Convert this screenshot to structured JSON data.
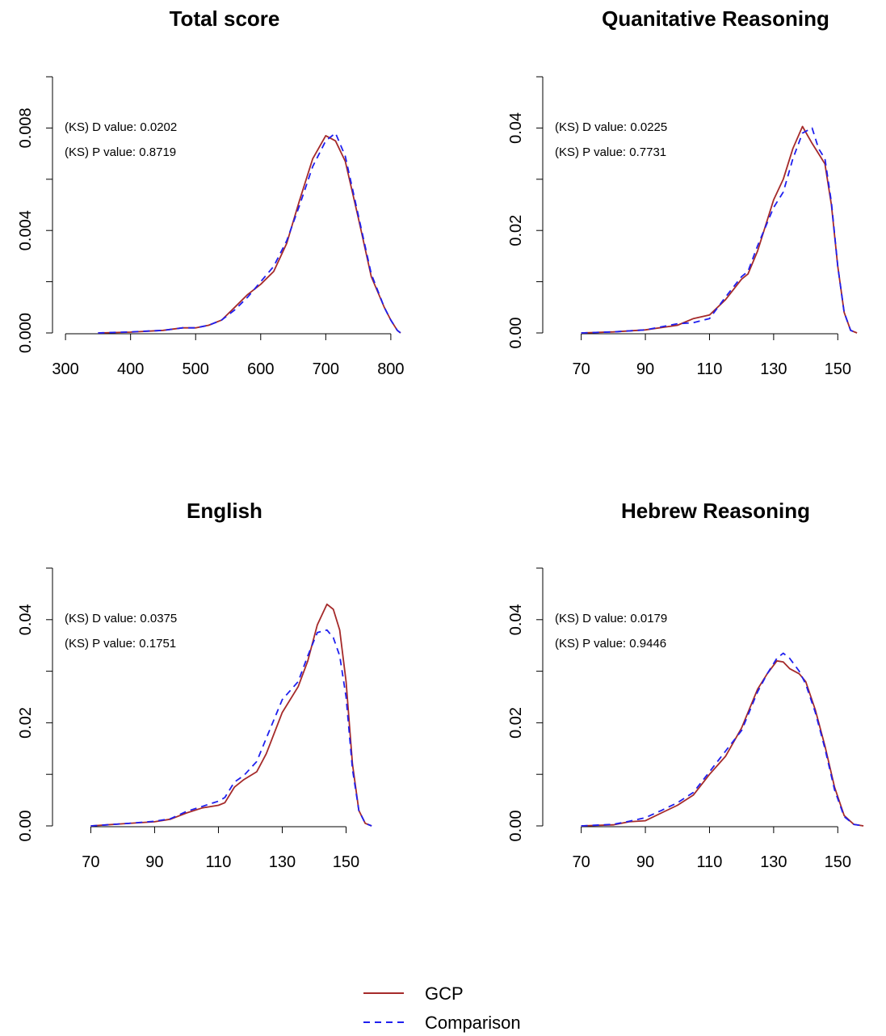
{
  "chart_data": [
    {
      "type": "line",
      "title": "Total score",
      "xlabel": "",
      "ylabel": "",
      "xlim": [
        280,
        820
      ],
      "ylim": [
        0,
        0.01
      ],
      "xticks": [
        300,
        400,
        500,
        600,
        700,
        800
      ],
      "xtick_labels": [
        "300",
        "400",
        "500",
        "600",
        "700",
        "800"
      ],
      "yticks": [
        0,
        0.002,
        0.004,
        0.006,
        0.008,
        0.01
      ],
      "ytick_labels": [
        "0.000",
        "",
        "0.004",
        "",
        "0.008",
        ""
      ],
      "annotations": [
        "(KS) D value: 0.0202",
        "(KS) P value: 0.8719"
      ],
      "series": [
        {
          "name": "GCP",
          "color": "#a52a2a",
          "dash": "solid",
          "x": [
            350,
            400,
            450,
            480,
            500,
            520,
            540,
            560,
            580,
            600,
            620,
            640,
            660,
            680,
            700,
            715,
            730,
            750,
            770,
            790,
            800,
            810,
            815
          ],
          "y": [
            0,
            3e-05,
            0.0001,
            0.0002,
            0.0002,
            0.0003,
            0.0005,
            0.001,
            0.0015,
            0.0019,
            0.0024,
            0.0035,
            0.0052,
            0.0068,
            0.0077,
            0.0075,
            0.0067,
            0.0045,
            0.0022,
            0.001,
            0.0005,
            0.0001,
            0
          ]
        },
        {
          "name": "Comparison",
          "color": "#1f1fef",
          "dash": "dashed",
          "x": [
            350,
            400,
            450,
            480,
            500,
            520,
            540,
            560,
            580,
            600,
            620,
            640,
            660,
            680,
            700,
            715,
            730,
            750,
            770,
            790,
            800,
            810,
            815
          ],
          "y": [
            0,
            4e-05,
            0.0001,
            0.0002,
            0.0002,
            0.0003,
            0.0005,
            0.0009,
            0.0014,
            0.002,
            0.0026,
            0.0036,
            0.005,
            0.0065,
            0.0075,
            0.0078,
            0.0069,
            0.0046,
            0.0023,
            0.001,
            0.0005,
            0.0001,
            0
          ]
        }
      ]
    },
    {
      "type": "line",
      "title": "Quanitative Reasoning",
      "xlabel": "",
      "ylabel": "",
      "xlim": [
        58,
        160
      ],
      "ylim": [
        0,
        0.05
      ],
      "xticks": [
        70,
        90,
        110,
        130,
        150
      ],
      "xtick_labels": [
        "70",
        "90",
        "110",
        "130",
        "150"
      ],
      "yticks": [
        0,
        0.01,
        0.02,
        0.03,
        0.04,
        0.05
      ],
      "ytick_labels": [
        "0.00",
        "",
        "0.02",
        "",
        "0.04",
        ""
      ],
      "annotations": [
        "(KS) D value: 0.0225",
        "(KS) P value: 0.7731"
      ],
      "series": [
        {
          "name": "GCP",
          "color": "#a52a2a",
          "dash": "solid",
          "x": [
            70,
            80,
            90,
            100,
            105,
            110,
            115,
            120,
            122,
            125,
            130,
            133,
            136,
            139,
            142,
            144,
            146,
            148,
            150,
            152,
            154,
            156
          ],
          "y": [
            0,
            0.0002,
            0.0006,
            0.0015,
            0.0028,
            0.0035,
            0.0065,
            0.0105,
            0.0115,
            0.016,
            0.026,
            0.03,
            0.036,
            0.0403,
            0.037,
            0.035,
            0.033,
            0.025,
            0.013,
            0.004,
            0.0005,
            0
          ]
        },
        {
          "name": "Comparison",
          "color": "#1f1fef",
          "dash": "dashed",
          "x": [
            70,
            80,
            90,
            100,
            105,
            110,
            115,
            120,
            122,
            125,
            130,
            133,
            136,
            139,
            142,
            144,
            146,
            148,
            150,
            152,
            154,
            156
          ],
          "y": [
            0,
            0.0002,
            0.0006,
            0.0018,
            0.002,
            0.0028,
            0.007,
            0.011,
            0.012,
            0.017,
            0.0245,
            0.0275,
            0.034,
            0.039,
            0.04,
            0.036,
            0.034,
            0.0255,
            0.013,
            0.004,
            0.0005,
            0
          ]
        }
      ]
    },
    {
      "type": "line",
      "title": "English",
      "xlabel": "",
      "ylabel": "",
      "xlim": [
        58,
        160
      ],
      "ylim": [
        0,
        0.05
      ],
      "xticks": [
        70,
        90,
        110,
        130,
        150
      ],
      "xtick_labels": [
        "70",
        "90",
        "110",
        "130",
        "150"
      ],
      "yticks": [
        0,
        0.01,
        0.02,
        0.03,
        0.04,
        0.05
      ],
      "ytick_labels": [
        "0.00",
        "",
        "0.02",
        "",
        "0.04",
        ""
      ],
      "annotations": [
        "(KS) D value: 0.0375",
        "(KS) P value: 0.1751"
      ],
      "series": [
        {
          "name": "GCP",
          "color": "#a52a2a",
          "dash": "solid",
          "x": [
            70,
            80,
            90,
            95,
            100,
            105,
            110,
            112,
            115,
            118,
            122,
            125,
            130,
            135,
            138,
            141,
            144,
            146,
            148,
            150,
            152,
            154,
            156,
            158
          ],
          "y": [
            0,
            0.0004,
            0.0008,
            0.0013,
            0.0025,
            0.0035,
            0.004,
            0.0045,
            0.0075,
            0.009,
            0.0105,
            0.014,
            0.022,
            0.027,
            0.032,
            0.039,
            0.043,
            0.042,
            0.038,
            0.028,
            0.012,
            0.003,
            0.0005,
            0
          ]
        },
        {
          "name": "Comparison",
          "color": "#1f1fef",
          "dash": "dashed",
          "x": [
            70,
            80,
            90,
            95,
            100,
            105,
            110,
            112,
            115,
            118,
            122,
            125,
            130,
            135,
            138,
            141,
            144,
            146,
            148,
            150,
            152,
            154,
            156,
            158
          ],
          "y": [
            0,
            0.0004,
            0.0009,
            0.0014,
            0.0028,
            0.0038,
            0.0048,
            0.0055,
            0.0085,
            0.0098,
            0.0125,
            0.017,
            0.0245,
            0.028,
            0.033,
            0.0375,
            0.038,
            0.0365,
            0.033,
            0.025,
            0.011,
            0.003,
            0.0005,
            0
          ]
        }
      ]
    },
    {
      "type": "line",
      "title": "Hebrew Reasoning",
      "xlabel": "",
      "ylabel": "",
      "xlim": [
        58,
        160
      ],
      "ylim": [
        0,
        0.05
      ],
      "xticks": [
        70,
        90,
        110,
        130,
        150
      ],
      "xtick_labels": [
        "70",
        "90",
        "110",
        "130",
        "150"
      ],
      "yticks": [
        0,
        0.01,
        0.02,
        0.03,
        0.04,
        0.05
      ],
      "ytick_labels": [
        "0.00",
        "",
        "0.02",
        "",
        "0.04",
        ""
      ],
      "annotations": [
        "(KS) D value: 0.0179",
        "(KS) P value: 0.9446"
      ],
      "series": [
        {
          "name": "GCP",
          "color": "#a52a2a",
          "dash": "solid",
          "x": [
            70,
            80,
            85,
            90,
            95,
            100,
            105,
            110,
            115,
            120,
            125,
            128,
            131,
            133,
            135,
            138,
            140,
            143,
            146,
            149,
            152,
            155,
            158
          ],
          "y": [
            0,
            0.0002,
            0.0008,
            0.001,
            0.0025,
            0.004,
            0.006,
            0.01,
            0.0135,
            0.019,
            0.0265,
            0.0295,
            0.032,
            0.0318,
            0.0305,
            0.0295,
            0.028,
            0.0225,
            0.0155,
            0.0075,
            0.002,
            0.0003,
            0
          ]
        },
        {
          "name": "Comparison",
          "color": "#1f1fef",
          "dash": "dashed",
          "x": [
            70,
            80,
            85,
            90,
            95,
            100,
            105,
            110,
            115,
            120,
            125,
            128,
            131,
            133,
            135,
            138,
            140,
            143,
            146,
            149,
            152,
            155,
            158
          ],
          "y": [
            0,
            0.0003,
            0.0009,
            0.0016,
            0.003,
            0.0045,
            0.0065,
            0.0105,
            0.0145,
            0.0185,
            0.026,
            0.0295,
            0.0325,
            0.0335,
            0.0325,
            0.03,
            0.0275,
            0.022,
            0.015,
            0.007,
            0.0018,
            0.0003,
            0
          ]
        }
      ]
    }
  ],
  "legend": {
    "placement": "bottom-center",
    "entries": [
      {
        "label": "GCP",
        "color": "#a52a2a",
        "dash": "solid"
      },
      {
        "label": "Comparison",
        "color": "#1f1fef",
        "dash": "dashed"
      }
    ]
  }
}
